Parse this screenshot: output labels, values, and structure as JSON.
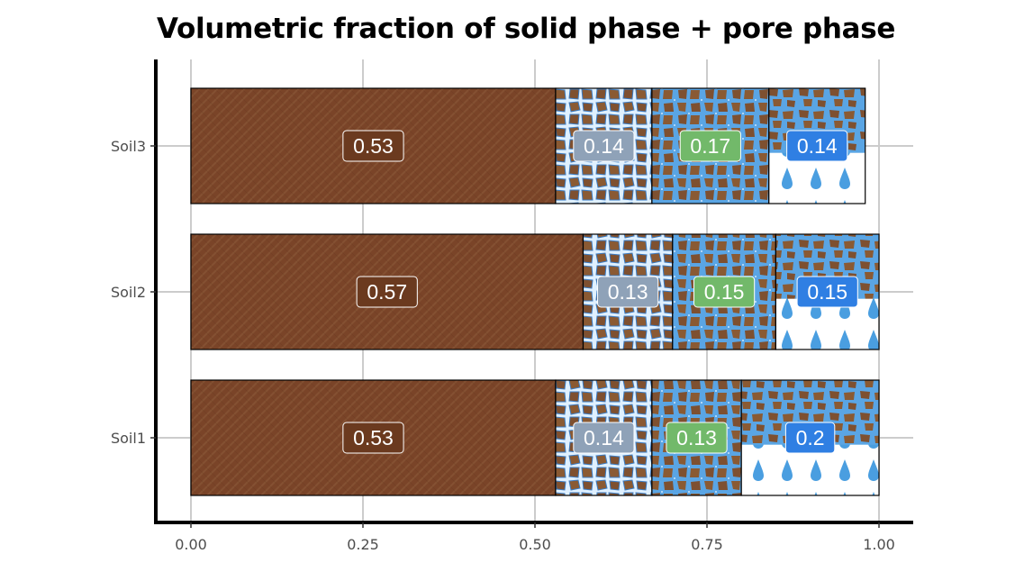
{
  "chart_data": {
    "type": "bar",
    "orientation": "horizontal",
    "stacked": true,
    "title": "Volumetric fraction of solid phase + pore phase",
    "xlabel": "",
    "ylabel": "",
    "xlim": [
      0,
      1
    ],
    "x_ticks": [
      "0.00",
      "0.25",
      "0.50",
      "0.75",
      "1.00"
    ],
    "x_tick_values": [
      0,
      0.25,
      0.5,
      0.75,
      1.0
    ],
    "categories": [
      "Soil1",
      "Soil2",
      "Soil3"
    ],
    "grid": true,
    "legend": "none",
    "series": [
      {
        "fill": "solid-grain-texture",
        "label_color": "#6b3a1f",
        "values": [
          0.53,
          0.57,
          0.53
        ],
        "labels": [
          "0.53",
          "0.57",
          "0.53"
        ]
      },
      {
        "fill": "grain-bright-pore-texture",
        "label_color": "#8fa2b8",
        "values": [
          0.14,
          0.13,
          0.14
        ],
        "labels": [
          "0.14",
          "0.13",
          "0.14"
        ]
      },
      {
        "fill": "grain-water-texture",
        "label_color": "#72b96a",
        "values": [
          0.13,
          0.15,
          0.17
        ],
        "labels": [
          "0.13",
          "0.15",
          "0.17"
        ]
      },
      {
        "fill": "water-drops-texture",
        "label_color": "#2f7fe3",
        "values": [
          0.2,
          0.15,
          0.14
        ],
        "labels": [
          "0.2",
          "0.15",
          "0.14"
        ]
      }
    ]
  },
  "colors": {
    "soil_brown": "#7a4428",
    "grain_brown": "#8a5a33",
    "pore_white": "#e8f4ff",
    "water_blue": "#5aa5e4",
    "drop_blue": "#4a9ee0",
    "grid": "#cccccc",
    "axis": "#000000"
  }
}
